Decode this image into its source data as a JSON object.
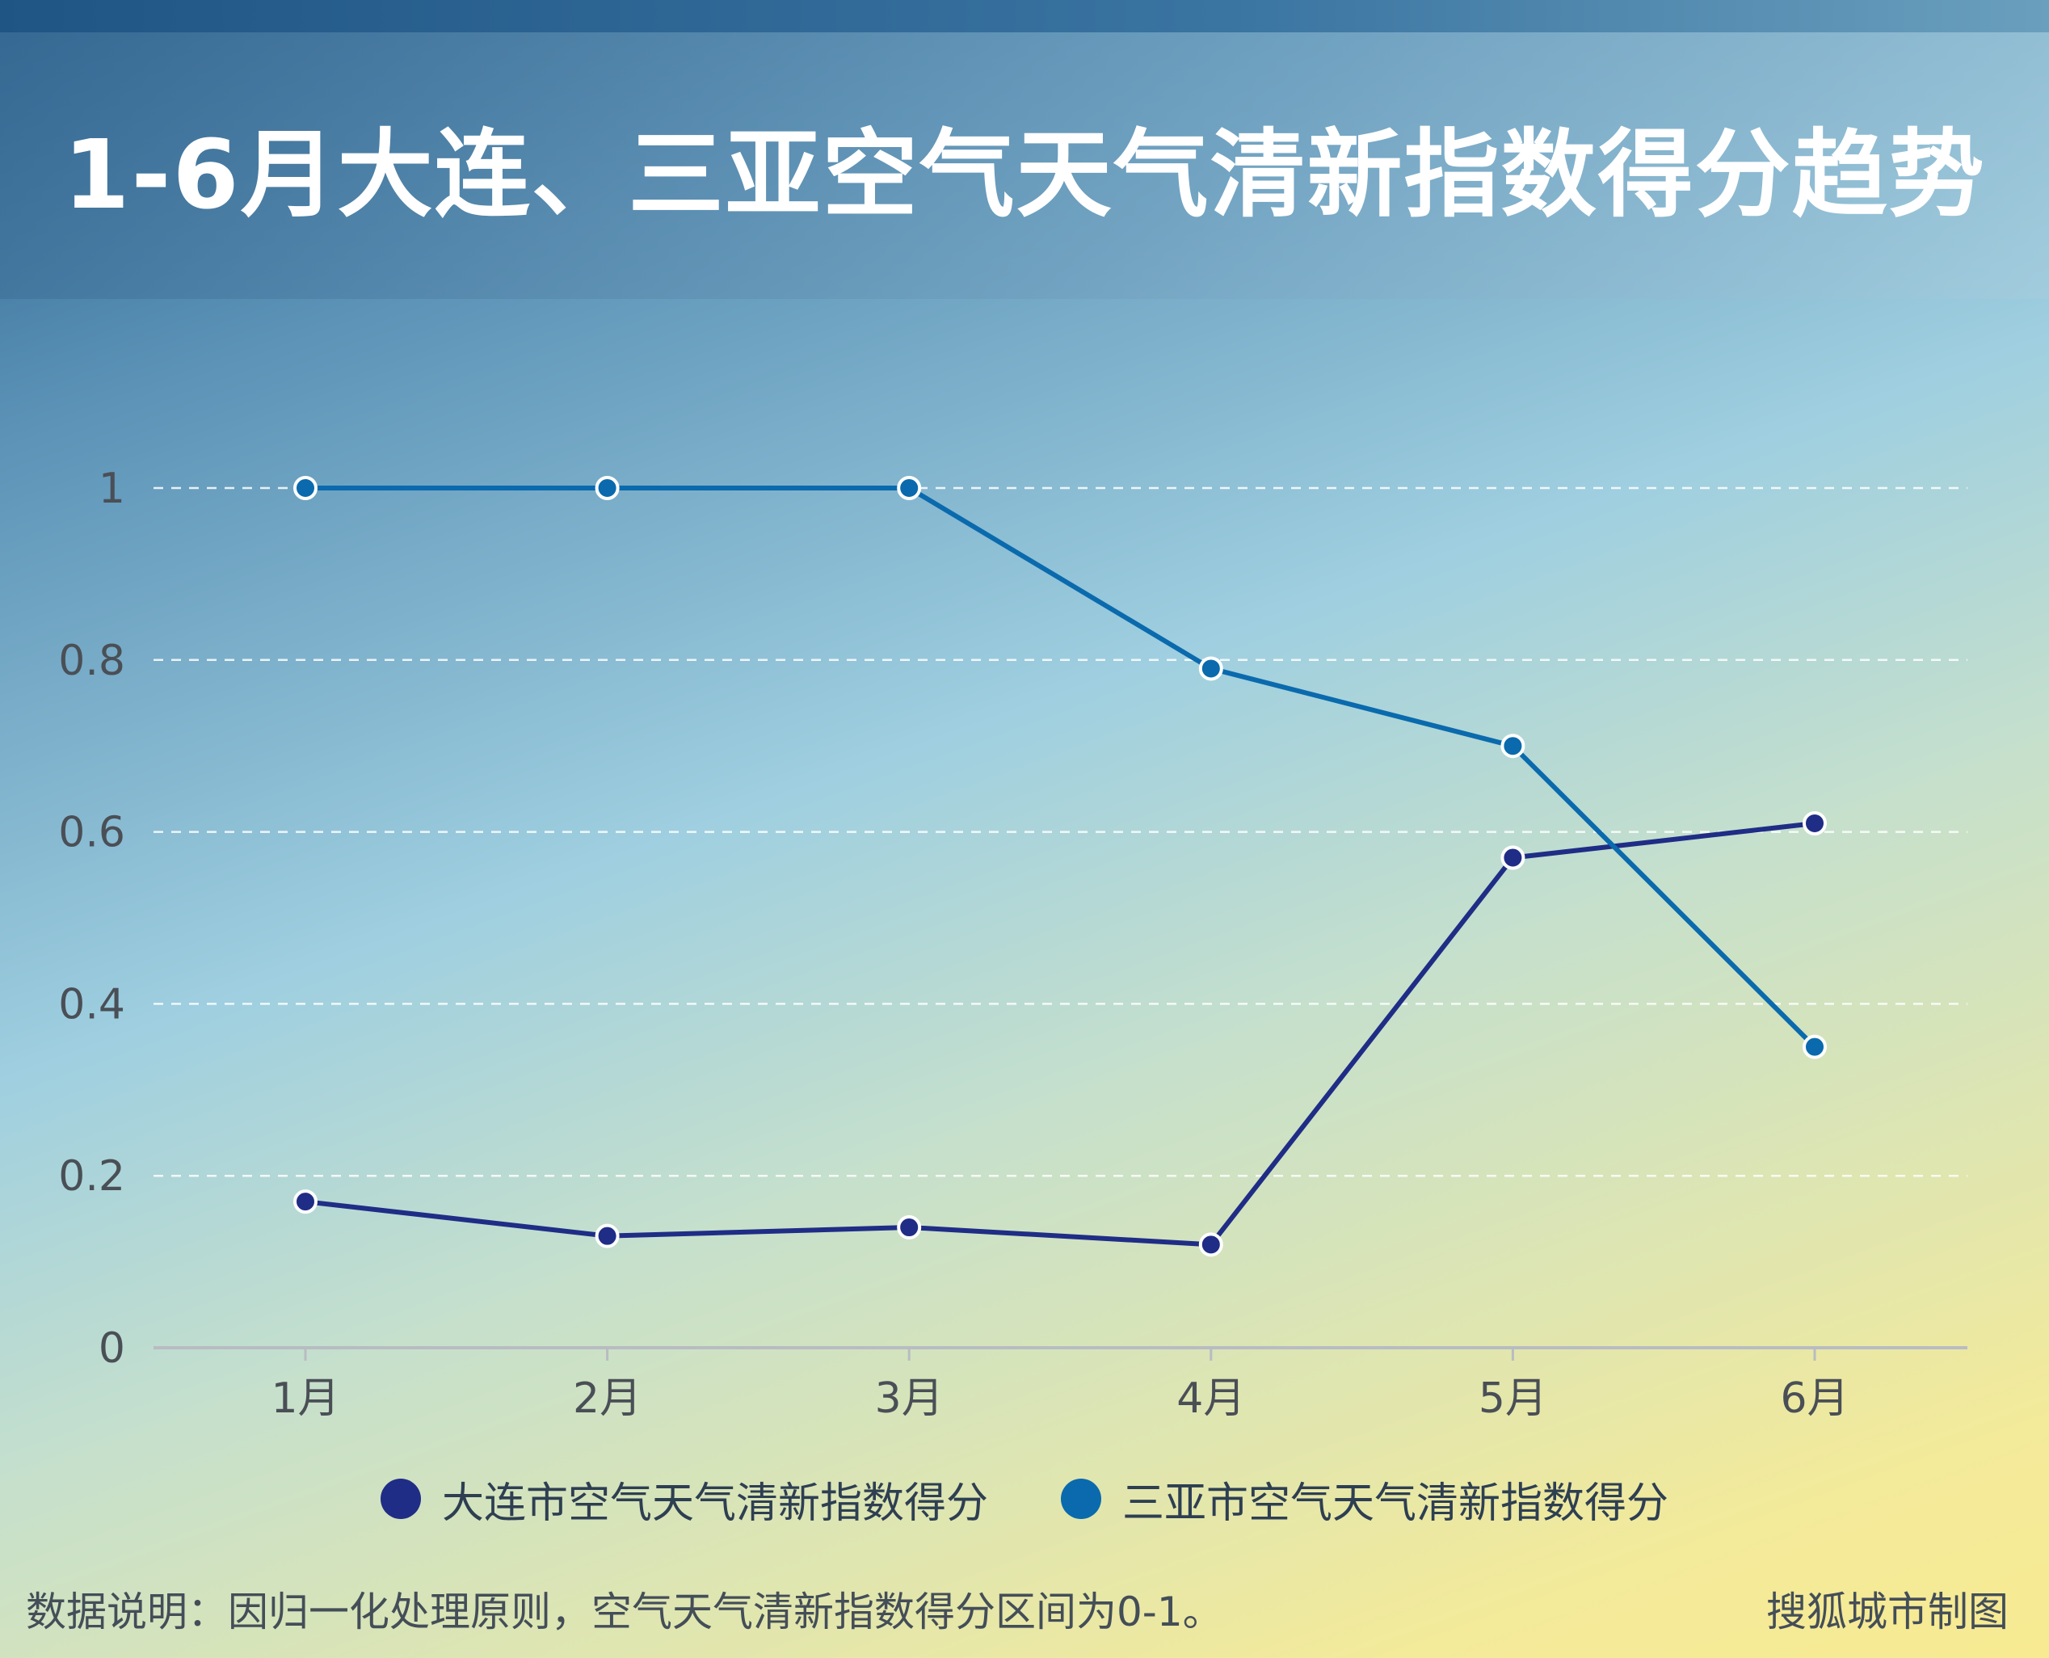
{
  "title": "1-6月大连、三亚空气天气清新指数得分趋势",
  "colors": {
    "dalian": "#1f2d86",
    "sanya": "#0a6aad",
    "grid": "#ffffff",
    "axis": "#b8bcc2",
    "tick_text": "#4a4f56"
  },
  "chart_data": {
    "type": "line",
    "title": "1-6月大连、三亚空气天气清新指数得分趋势",
    "categories": [
      "1月",
      "2月",
      "3月",
      "4月",
      "5月",
      "6月"
    ],
    "yticks": [
      "0",
      "0.2",
      "0.4",
      "0.6",
      "0.8",
      "1"
    ],
    "ylim": [
      0,
      1
    ],
    "grid": true,
    "legend_position": "bottom",
    "series": [
      {
        "name": "大连市空气天气清新指数得分",
        "values": [
          0.17,
          0.13,
          0.14,
          0.12,
          0.57,
          0.61
        ]
      },
      {
        "name": "三亚市空气天气清新指数得分",
        "values": [
          1.0,
          1.0,
          1.0,
          0.79,
          0.7,
          0.35
        ]
      }
    ]
  },
  "footer": {
    "note": "数据说明：因归一化处理原则，空气天气清新指数得分区间为0-1。",
    "credit": "搜狐城市制图"
  }
}
